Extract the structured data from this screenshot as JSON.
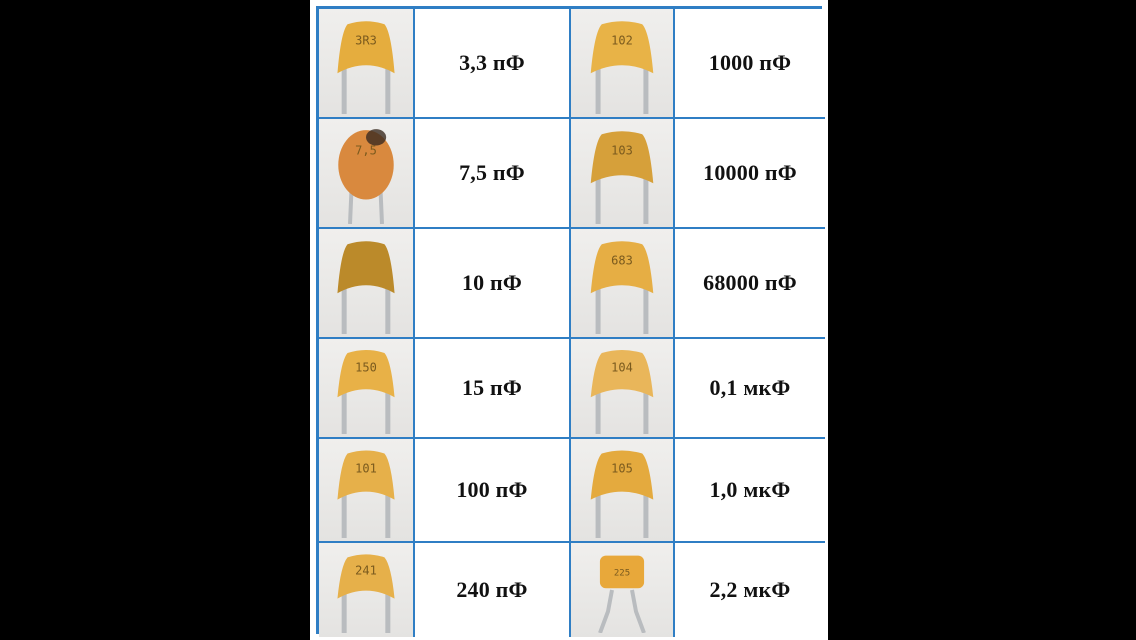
{
  "capacitors": [
    {
      "code": "3R3",
      "value": "3,3 пФ",
      "shape": "tab",
      "body": "#e5ad3e"
    },
    {
      "code": "102",
      "value": "1000 пФ",
      "shape": "tab",
      "body": "#e8b347"
    },
    {
      "code": "7,5",
      "value": "7,5 пФ",
      "shape": "disc",
      "body": "#d9893e"
    },
    {
      "code": "103",
      "value": "10000 пФ",
      "shape": "tab",
      "body": "#d6a03a"
    },
    {
      "code": "",
      "value": "10 пФ",
      "shape": "tab",
      "body": "#bb8a2a"
    },
    {
      "code": "683",
      "value": "68000 пФ",
      "shape": "tab",
      "body": "#e6ae44"
    },
    {
      "code": "150",
      "value": "15 пФ",
      "shape": "tab",
      "body": "#e8b147"
    },
    {
      "code": "104",
      "value": "0,1 мкФ",
      "shape": "tab",
      "body": "#e9b65a"
    },
    {
      "code": "101",
      "value": "100 пФ",
      "shape": "tab",
      "body": "#e6b04a"
    },
    {
      "code": "105",
      "value": "1,0 мкФ",
      "shape": "tab",
      "body": "#e4aa3e"
    },
    {
      "code": "241",
      "value": "240 пФ",
      "shape": "tab",
      "body": "#e6b04a"
    },
    {
      "code": "225",
      "value": "2,2 мкФ",
      "shape": "box",
      "body": "#e8a83a"
    }
  ]
}
